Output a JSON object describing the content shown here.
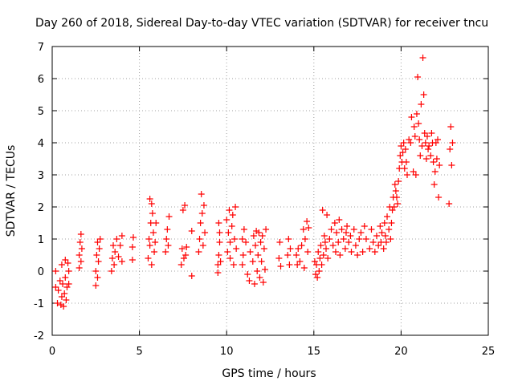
{
  "chart_data": {
    "type": "scatter",
    "title": "Day 260 of 2018, Sidereal Day-to-day VTEC variation (SDTVAR) for receiver tncu",
    "xlabel": "GPS time / hours",
    "ylabel": "SDTVAR / TECUs",
    "xlim": [
      0,
      25
    ],
    "ylim": [
      -2,
      7
    ],
    "xticks": [
      "0",
      "5",
      "10",
      "15",
      "20",
      "25"
    ],
    "yticks": [
      "-2",
      "-1",
      "0",
      "1",
      "2",
      "3",
      "4",
      "5",
      "6",
      "7"
    ],
    "grid": true,
    "marker": "+",
    "color": "#ff0000",
    "series": [
      {
        "name": "SDTVAR",
        "points": [
          [
            0.2,
            -0.5
          ],
          [
            0.2,
            0.0
          ],
          [
            0.3,
            -1.0
          ],
          [
            0.35,
            -0.6
          ],
          [
            0.45,
            -0.3
          ],
          [
            0.5,
            -1.05
          ],
          [
            0.55,
            -0.8
          ],
          [
            0.55,
            0.2
          ],
          [
            0.6,
            -0.4
          ],
          [
            0.65,
            -1.1
          ],
          [
            0.7,
            -0.7
          ],
          [
            0.75,
            -0.2
          ],
          [
            0.75,
            0.35
          ],
          [
            0.8,
            -0.9
          ],
          [
            0.85,
            -0.5
          ],
          [
            0.9,
            0.25
          ],
          [
            0.95,
            -0.4
          ],
          [
            0.95,
            0.0
          ],
          [
            1.55,
            0.1
          ],
          [
            1.55,
            0.5
          ],
          [
            1.6,
            0.9
          ],
          [
            1.65,
            0.3
          ],
          [
            1.65,
            1.15
          ],
          [
            1.7,
            0.7
          ],
          [
            2.5,
            -0.45
          ],
          [
            2.5,
            0.0
          ],
          [
            2.55,
            0.5
          ],
          [
            2.6,
            0.9
          ],
          [
            2.6,
            -0.2
          ],
          [
            2.65,
            0.3
          ],
          [
            2.7,
            0.7
          ],
          [
            2.75,
            1.0
          ],
          [
            3.4,
            0.0
          ],
          [
            3.45,
            0.4
          ],
          [
            3.5,
            0.8
          ],
          [
            3.55,
            0.2
          ],
          [
            3.6,
            0.6
          ],
          [
            3.7,
            1.0
          ],
          [
            3.8,
            0.45
          ],
          [
            3.9,
            0.8
          ],
          [
            4.0,
            0.3
          ],
          [
            4.0,
            1.1
          ],
          [
            4.6,
            0.35
          ],
          [
            4.6,
            0.75
          ],
          [
            4.65,
            1.05
          ],
          [
            5.5,
            0.4
          ],
          [
            5.55,
            1.0
          ],
          [
            5.6,
            0.8
          ],
          [
            5.6,
            2.25
          ],
          [
            5.65,
            1.5
          ],
          [
            5.7,
            2.1
          ],
          [
            5.7,
            0.2
          ],
          [
            5.75,
            1.8
          ],
          [
            5.8,
            1.2
          ],
          [
            5.85,
            0.6
          ],
          [
            5.9,
            0.9
          ],
          [
            5.95,
            1.5
          ],
          [
            6.5,
            0.6
          ],
          [
            6.55,
            1.0
          ],
          [
            6.6,
            1.3
          ],
          [
            6.65,
            0.8
          ],
          [
            6.7,
            1.7
          ],
          [
            7.4,
            0.2
          ],
          [
            7.45,
            0.7
          ],
          [
            7.5,
            1.9
          ],
          [
            7.55,
            0.4
          ],
          [
            7.6,
            2.05
          ],
          [
            7.65,
            0.5
          ],
          [
            7.7,
            0.75
          ],
          [
            8.0,
            -0.15
          ],
          [
            8.0,
            1.25
          ],
          [
            8.4,
            0.6
          ],
          [
            8.45,
            1.0
          ],
          [
            8.5,
            1.5
          ],
          [
            8.55,
            2.4
          ],
          [
            8.6,
            1.8
          ],
          [
            8.65,
            0.8
          ],
          [
            8.7,
            2.05
          ],
          [
            8.75,
            1.2
          ],
          [
            9.5,
            -0.05
          ],
          [
            9.5,
            0.2
          ],
          [
            9.55,
            0.5
          ],
          [
            9.55,
            1.5
          ],
          [
            9.6,
            0.9
          ],
          [
            9.6,
            1.2
          ],
          [
            9.65,
            0.3
          ],
          [
            10.0,
            1.6
          ],
          [
            10.05,
            0.6
          ],
          [
            10.1,
            1.2
          ],
          [
            10.15,
            1.9
          ],
          [
            10.2,
            0.9
          ],
          [
            10.2,
            0.4
          ],
          [
            10.3,
            1.4
          ],
          [
            10.35,
            1.75
          ],
          [
            10.4,
            0.2
          ],
          [
            10.45,
            1.0
          ],
          [
            10.5,
            2.0
          ],
          [
            10.55,
            0.7
          ],
          [
            10.9,
            0.2
          ],
          [
            10.9,
            1.0
          ],
          [
            10.95,
            0.5
          ],
          [
            11.0,
            1.3
          ],
          [
            11.1,
            0.9
          ],
          [
            11.2,
            -0.1
          ],
          [
            11.3,
            -0.3
          ],
          [
            11.35,
            0.6
          ],
          [
            11.5,
            0.3
          ],
          [
            11.55,
            1.1
          ],
          [
            11.6,
            -0.4
          ],
          [
            11.65,
            0.8
          ],
          [
            11.7,
            1.25
          ],
          [
            11.75,
            0.0
          ],
          [
            11.8,
            0.5
          ],
          [
            11.85,
            1.2
          ],
          [
            11.9,
            -0.2
          ],
          [
            11.95,
            0.9
          ],
          [
            12.0,
            0.3
          ],
          [
            12.05,
            1.1
          ],
          [
            12.1,
            -0.35
          ],
          [
            12.15,
            0.7
          ],
          [
            12.2,
            0.05
          ],
          [
            12.25,
            1.3
          ],
          [
            13.0,
            0.4
          ],
          [
            13.05,
            0.9
          ],
          [
            13.1,
            0.15
          ],
          [
            13.5,
            0.5
          ],
          [
            13.55,
            1.0
          ],
          [
            13.6,
            0.2
          ],
          [
            13.65,
            0.7
          ],
          [
            14.0,
            0.5
          ],
          [
            14.05,
            0.2
          ],
          [
            14.1,
            0.7
          ],
          [
            14.2,
            0.3
          ],
          [
            14.3,
            0.8
          ],
          [
            14.4,
            1.3
          ],
          [
            14.45,
            0.1
          ],
          [
            14.5,
            1.0
          ],
          [
            14.6,
            1.55
          ],
          [
            14.65,
            0.6
          ],
          [
            14.7,
            1.35
          ],
          [
            15.05,
            0.3
          ],
          [
            15.1,
            -0.1
          ],
          [
            15.15,
            0.2
          ],
          [
            15.2,
            -0.2
          ],
          [
            15.25,
            0.6
          ],
          [
            15.3,
            0.0
          ],
          [
            15.35,
            0.4
          ],
          [
            15.4,
            0.8
          ],
          [
            15.45,
            0.2
          ],
          [
            15.5,
            1.9
          ],
          [
            15.55,
            0.5
          ],
          [
            15.6,
            1.1
          ],
          [
            15.65,
            0.9
          ],
          [
            15.7,
            0.7
          ],
          [
            15.75,
            1.75
          ],
          [
            15.8,
            0.4
          ],
          [
            15.9,
            1.0
          ],
          [
            16.0,
            1.3
          ],
          [
            16.1,
            0.8
          ],
          [
            16.2,
            1.5
          ],
          [
            16.25,
            0.6
          ],
          [
            16.3,
            1.2
          ],
          [
            16.4,
            0.9
          ],
          [
            16.45,
            1.6
          ],
          [
            16.5,
            0.5
          ],
          [
            16.6,
            1.3
          ],
          [
            16.7,
            1.0
          ],
          [
            16.8,
            0.7
          ],
          [
            16.85,
            1.2
          ],
          [
            16.9,
            1.4
          ],
          [
            17.0,
            0.9
          ],
          [
            17.1,
            1.1
          ],
          [
            17.15,
            0.6
          ],
          [
            17.3,
            1.3
          ],
          [
            17.4,
            0.8
          ],
          [
            17.5,
            0.5
          ],
          [
            17.6,
            1.0
          ],
          [
            17.7,
            1.2
          ],
          [
            17.8,
            0.6
          ],
          [
            17.9,
            1.4
          ],
          [
            18.0,
            1.0
          ],
          [
            18.2,
            0.7
          ],
          [
            18.3,
            1.3
          ],
          [
            18.4,
            0.9
          ],
          [
            18.5,
            0.6
          ],
          [
            18.6,
            1.1
          ],
          [
            18.7,
            0.8
          ],
          [
            18.8,
            1.4
          ],
          [
            18.85,
            0.9
          ],
          [
            18.9,
            1.2
          ],
          [
            19.0,
            0.7
          ],
          [
            19.05,
            1.5
          ],
          [
            19.1,
            1.1
          ],
          [
            19.15,
            0.9
          ],
          [
            19.2,
            1.7
          ],
          [
            19.3,
            1.3
          ],
          [
            19.35,
            2.0
          ],
          [
            19.4,
            1.0
          ],
          [
            19.45,
            1.5
          ],
          [
            19.5,
            1.9
          ],
          [
            19.55,
            2.3
          ],
          [
            19.6,
            2.0
          ],
          [
            19.65,
            2.7
          ],
          [
            19.7,
            2.5
          ],
          [
            19.75,
            2.3
          ],
          [
            19.8,
            2.1
          ],
          [
            19.85,
            2.8
          ],
          [
            19.9,
            3.2
          ],
          [
            19.95,
            3.6
          ],
          [
            20.0,
            3.9
          ],
          [
            20.05,
            3.4
          ],
          [
            20.1,
            3.7
          ],
          [
            20.15,
            4.0
          ],
          [
            20.2,
            3.2
          ],
          [
            20.25,
            3.8
          ],
          [
            20.3,
            3.4
          ],
          [
            20.35,
            3.0
          ],
          [
            20.45,
            4.1
          ],
          [
            20.55,
            4.0
          ],
          [
            20.6,
            4.8
          ],
          [
            20.7,
            3.1
          ],
          [
            20.75,
            4.5
          ],
          [
            20.8,
            4.2
          ],
          [
            20.85,
            3.0
          ],
          [
            20.9,
            4.9
          ],
          [
            20.95,
            6.05
          ],
          [
            21.0,
            4.6
          ],
          [
            21.05,
            4.1
          ],
          [
            21.1,
            3.6
          ],
          [
            21.15,
            5.2
          ],
          [
            21.2,
            3.9
          ],
          [
            21.25,
            6.65
          ],
          [
            21.3,
            5.5
          ],
          [
            21.35,
            4.3
          ],
          [
            21.4,
            4.0
          ],
          [
            21.45,
            3.5
          ],
          [
            21.5,
            4.2
          ],
          [
            21.55,
            3.8
          ],
          [
            21.6,
            3.9
          ],
          [
            21.7,
            3.6
          ],
          [
            21.75,
            4.3
          ],
          [
            21.8,
            4.0
          ],
          [
            21.85,
            3.4
          ],
          [
            21.9,
            2.7
          ],
          [
            21.95,
            3.1
          ],
          [
            22.0,
            4.0
          ],
          [
            22.05,
            3.5
          ],
          [
            22.1,
            4.1
          ],
          [
            22.15,
            2.3
          ],
          [
            22.2,
            3.3
          ],
          [
            22.75,
            2.1
          ],
          [
            22.8,
            3.8
          ],
          [
            22.85,
            4.5
          ],
          [
            22.9,
            3.3
          ],
          [
            22.95,
            4.0
          ]
        ]
      }
    ]
  }
}
